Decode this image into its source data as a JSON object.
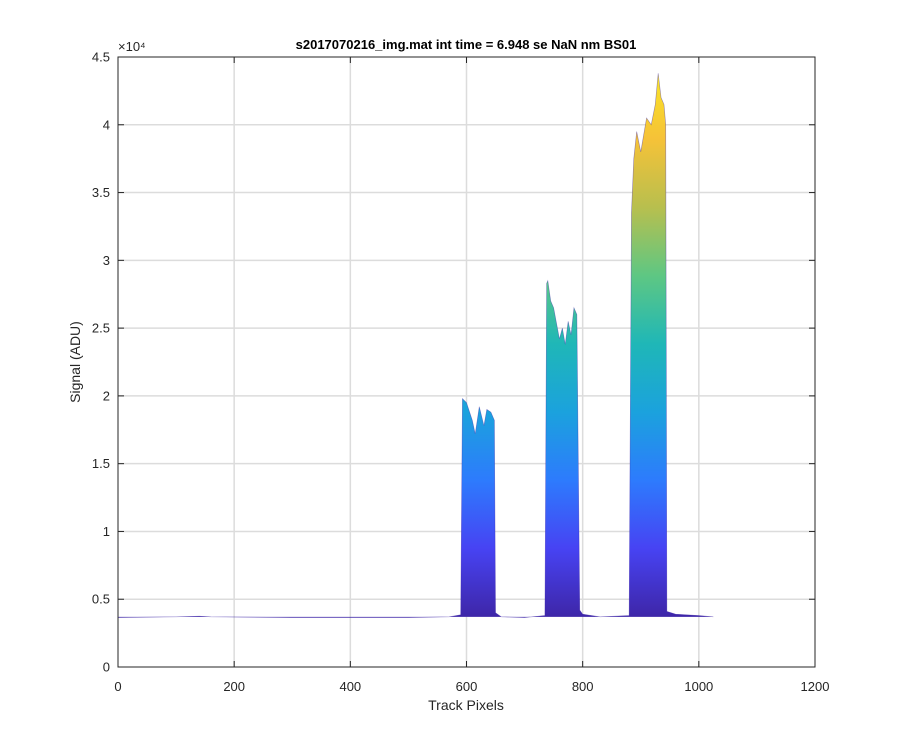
{
  "chart_data": {
    "type": "area",
    "title": "s2017070216_img.mat int time = 6.948 se  NaN nm BS01",
    "xlabel": "Track Pixels",
    "ylabel": "Signal (ADU)",
    "xlim": [
      0,
      1200
    ],
    "ylim": [
      0,
      45000
    ],
    "x_ticks": [
      0,
      200,
      400,
      600,
      800,
      1000,
      1200
    ],
    "x_tick_labels": [
      "0",
      "200",
      "400",
      "600",
      "800",
      "1000",
      "1200"
    ],
    "y_ticks": [
      0,
      5000,
      10000,
      15000,
      20000,
      25000,
      30000,
      35000,
      40000,
      45000
    ],
    "y_tick_labels": [
      "0",
      "0.5",
      "1",
      "1.5",
      "2",
      "2.5",
      "3",
      "3.5",
      "4",
      "4.5"
    ],
    "y_exponent_label": "×10⁴",
    "grid": true,
    "colormap": [
      "#3e26a8",
      "#4743f3",
      "#2d7bfd",
      "#1ba2dd",
      "#1fb7b7",
      "#5ec783",
      "#b8bf4e",
      "#f6c238",
      "#f9e726"
    ],
    "baseline": 3700,
    "series": [
      {
        "x": [
          0,
          100,
          140,
          160,
          300,
          500,
          570,
          590,
          593,
          600,
          610,
          615,
          622,
          630,
          635,
          642,
          648,
          650,
          660,
          700,
          735,
          738,
          740,
          745,
          750,
          760,
          765,
          770,
          775,
          780,
          785,
          790,
          795,
          800,
          830,
          880,
          884,
          888,
          893,
          900,
          910,
          918,
          925,
          930,
          935,
          940,
          943,
          945,
          960,
          1000,
          1025
        ],
        "y": [
          3650,
          3700,
          3750,
          3700,
          3650,
          3650,
          3700,
          3850,
          19800,
          19500,
          18200,
          17200,
          19200,
          17800,
          19000,
          18800,
          18200,
          4000,
          3700,
          3650,
          3800,
          28300,
          28500,
          27000,
          26500,
          24200,
          25000,
          23800,
          25500,
          24500,
          26500,
          26000,
          4200,
          3900,
          3700,
          3800,
          33500,
          37500,
          39500,
          38000,
          40500,
          40000,
          41500,
          43800,
          42000,
          41500,
          40000,
          4100,
          3900,
          3800,
          3700
        ]
      }
    ]
  }
}
